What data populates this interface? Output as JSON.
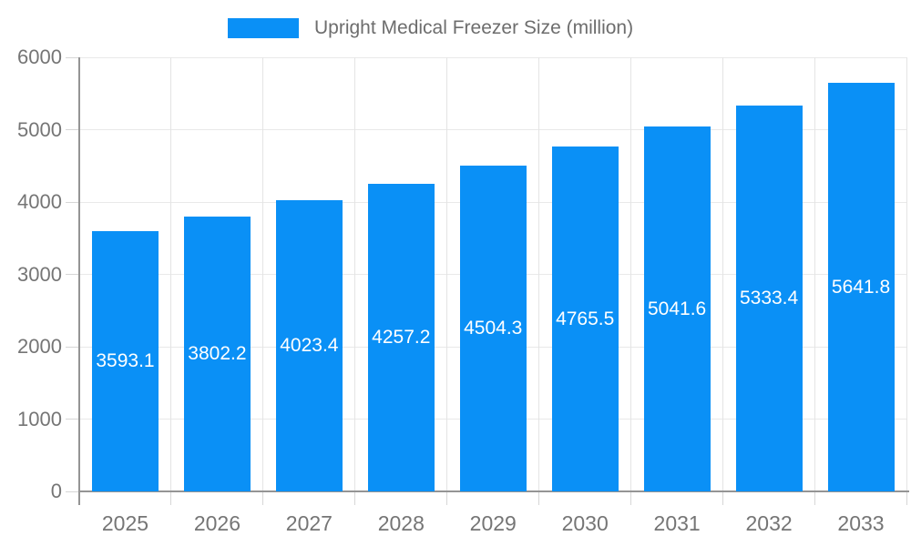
{
  "legend": {
    "label": "Upright Medical Freezer Size (million)"
  },
  "chart_data": {
    "type": "bar",
    "title": "Upright Medical Freezer Size (million)",
    "categories": [
      "2025",
      "2026",
      "2027",
      "2028",
      "2029",
      "2030",
      "2031",
      "2032",
      "2033"
    ],
    "values": [
      3593.1,
      3802.2,
      4023.4,
      4257.2,
      4504.3,
      4765.5,
      5041.6,
      5333.4,
      5641.8
    ],
    "value_labels": [
      "3593.1",
      "3802.2",
      "4023.4",
      "4257.2",
      "4504.3",
      "4765.5",
      "5041.6",
      "5333.4",
      "5641.8"
    ],
    "xlabel": "",
    "ylabel": "",
    "ylim": [
      0,
      6000
    ],
    "yticks": [
      0,
      1000,
      2000,
      3000,
      4000,
      5000,
      6000
    ],
    "ytick_labels": [
      "0",
      "1000",
      "2000",
      "3000",
      "4000",
      "5000",
      "6000"
    ],
    "grid": true,
    "legend_position": "top-center",
    "colors": {
      "bar": "#0a90f6",
      "value_label": "#ffffff",
      "axis_tick_label": "#757575",
      "legend_text": "#6d6d6d",
      "gridline": "#e9e9e9",
      "tick_mark": "#d6d6d6",
      "axis_line": "#949494",
      "background": "#ffffff"
    }
  }
}
